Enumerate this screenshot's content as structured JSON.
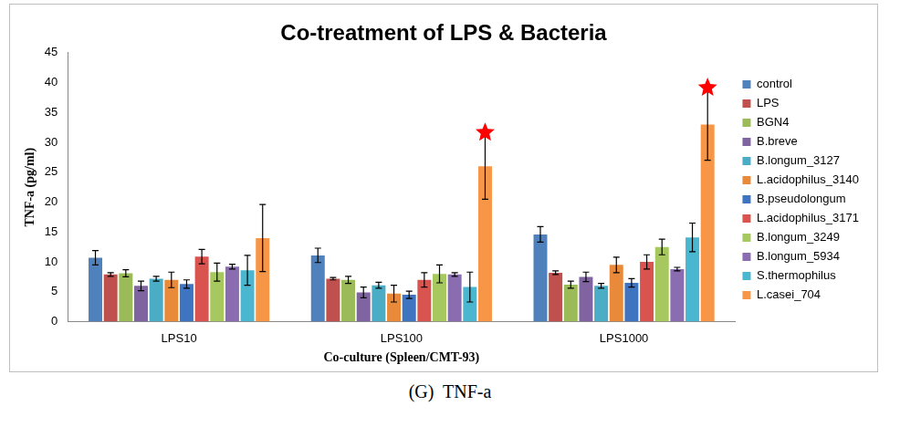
{
  "chart_data": {
    "type": "bar",
    "title": "Co-treatment of LPS & Bacteria",
    "caption": "(G)  TNF-a",
    "x_label": "Co-culture (Spleen/CMT-93)",
    "y_label": "TNF-a (pg/ml)",
    "categories": [
      "LPS10",
      "LPS100",
      "LPS1000"
    ],
    "series": [
      {
        "name": "control",
        "color": "#4f81bd",
        "values": [
          10.7,
          11.1,
          14.6
        ],
        "errors": [
          1.2,
          1.2,
          1.3
        ]
      },
      {
        "name": "LPS",
        "color": "#c0504d",
        "values": [
          7.9,
          7.2,
          8.2
        ],
        "errors": [
          0.3,
          0.2,
          0.3
        ]
      },
      {
        "name": "BGN4",
        "color": "#9bbb59",
        "values": [
          8.1,
          7.0,
          6.2
        ],
        "errors": [
          0.6,
          0.6,
          0.6
        ]
      },
      {
        "name": "B.breve",
        "color": "#8064a2",
        "values": [
          6.0,
          4.9,
          7.5
        ],
        "errors": [
          0.8,
          0.9,
          0.8
        ]
      },
      {
        "name": "B.longum_3127",
        "color": "#4bacc6",
        "values": [
          7.2,
          6.1,
          6.0
        ],
        "errors": [
          0.4,
          0.5,
          0.4
        ]
      },
      {
        "name": "L.acidophilus_3140",
        "color": "#e98a3a",
        "values": [
          7.0,
          4.7,
          9.5
        ],
        "errors": [
          1.3,
          1.4,
          1.3
        ]
      },
      {
        "name": "B.pseudolongum",
        "color": "#3f74c0",
        "values": [
          6.3,
          4.5,
          6.5
        ],
        "errors": [
          0.7,
          0.6,
          0.7
        ]
      },
      {
        "name": "L.acidophilus_3171",
        "color": "#d9534f",
        "values": [
          10.9,
          7.0,
          10.0
        ],
        "errors": [
          1.2,
          1.2,
          1.2
        ]
      },
      {
        "name": "B.longum_3249",
        "color": "#a6c85f",
        "values": [
          8.3,
          8.0,
          12.5
        ],
        "errors": [
          1.5,
          1.5,
          1.3
        ]
      },
      {
        "name": "B.longum_5934",
        "color": "#8a6cb0",
        "values": [
          9.2,
          7.9,
          8.8
        ],
        "errors": [
          0.4,
          0.3,
          0.3
        ]
      },
      {
        "name": "S.thermophilus",
        "color": "#4bb6cf",
        "values": [
          8.6,
          5.8,
          14.1
        ],
        "errors": [
          2.5,
          2.5,
          2.4
        ]
      },
      {
        "name": "L.casei_704",
        "color": "#f79646",
        "values": [
          14.0,
          26.0,
          33.0
        ],
        "errors": [
          5.6,
          5.5,
          6.0
        ]
      }
    ],
    "annotations": [
      {
        "category": "LPS100",
        "series": "L.casei_704",
        "marker": "star",
        "color": "#ff0000"
      },
      {
        "category": "LPS1000",
        "series": "L.casei_704",
        "marker": "star",
        "color": "#ff0000"
      }
    ],
    "ylim": [
      0,
      45
    ],
    "yticks": [
      0,
      5,
      10,
      15,
      20,
      25,
      30,
      35,
      40,
      45
    ],
    "grid": false,
    "legend": "right"
  }
}
